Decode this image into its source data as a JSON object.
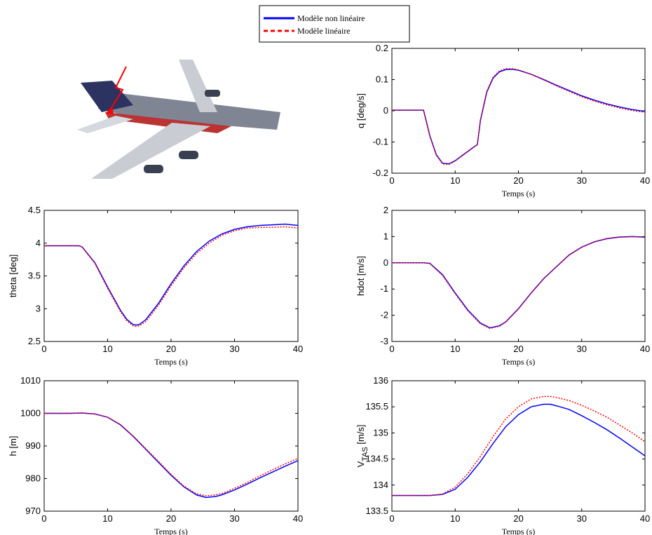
{
  "legend": [
    {
      "name": "Modèle non linéaire",
      "color": "#0000ff",
      "dash": "solid"
    },
    {
      "name": "Modèle linéaire",
      "color": "#ff0000",
      "dash": "dotted"
    }
  ],
  "chart_data": [
    {
      "type": "line",
      "ylabel": "q [deg/s]",
      "xlabel": "Temps (s)",
      "x": [
        0,
        5,
        6,
        7,
        8,
        9,
        10,
        11,
        12,
        13,
        13.5,
        14,
        15,
        16,
        17,
        18,
        19,
        20,
        22,
        24,
        26,
        28,
        30,
        32,
        34,
        36,
        38,
        40
      ],
      "series": [
        {
          "color": "#0000ff",
          "dash": "solid",
          "values": [
            0.002,
            0.002,
            -0.08,
            -0.14,
            -0.168,
            -0.17,
            -0.16,
            -0.145,
            -0.13,
            -0.115,
            -0.108,
            -0.03,
            0.06,
            0.105,
            0.125,
            0.132,
            0.133,
            0.13,
            0.117,
            0.1,
            0.082,
            0.065,
            0.048,
            0.034,
            0.022,
            0.012,
            0.004,
            -0.002
          ]
        },
        {
          "color": "#ff0000",
          "dash": "dotted",
          "values": [
            0.002,
            0.002,
            -0.082,
            -0.142,
            -0.17,
            -0.172,
            -0.161,
            -0.146,
            -0.131,
            -0.116,
            -0.109,
            -0.028,
            0.063,
            0.108,
            0.128,
            0.135,
            0.135,
            0.131,
            0.117,
            0.099,
            0.08,
            0.062,
            0.045,
            0.031,
            0.019,
            0.009,
            0.001,
            -0.005
          ]
        }
      ],
      "xlim": [
        0,
        40
      ],
      "xticks": [
        0,
        10,
        20,
        30,
        40
      ],
      "ylim": [
        -0.2,
        0.2
      ],
      "yticks": [
        -0.2,
        -0.1,
        0,
        0.1,
        0.2
      ]
    },
    {
      "type": "line",
      "ylabel": "theta [deg]",
      "xlabel": "Temps (s)",
      "x": [
        0,
        2,
        4,
        5.5,
        6,
        8,
        10,
        12,
        13,
        14,
        14.5,
        15,
        16,
        18,
        20,
        22,
        24,
        26,
        28,
        30,
        32,
        34,
        36,
        38,
        40
      ],
      "series": [
        {
          "color": "#0000ff",
          "dash": "solid",
          "values": [
            3.96,
            3.96,
            3.96,
            3.96,
            3.94,
            3.7,
            3.33,
            2.98,
            2.84,
            2.76,
            2.75,
            2.76,
            2.83,
            3.08,
            3.38,
            3.65,
            3.87,
            4.03,
            4.14,
            4.21,
            4.25,
            4.27,
            4.28,
            4.29,
            4.27
          ]
        },
        {
          "color": "#ff0000",
          "dash": "dotted",
          "values": [
            3.96,
            3.96,
            3.96,
            3.96,
            3.94,
            3.69,
            3.31,
            2.96,
            2.82,
            2.74,
            2.73,
            2.74,
            2.8,
            3.05,
            3.35,
            3.62,
            3.84,
            4.0,
            4.12,
            4.19,
            4.23,
            4.24,
            4.24,
            4.25,
            4.23
          ]
        }
      ],
      "xlim": [
        0,
        40
      ],
      "xticks": [
        0,
        10,
        20,
        30,
        40
      ],
      "ylim": [
        2.5,
        4.5
      ],
      "yticks": [
        2.5,
        3,
        3.5,
        4,
        4.5
      ]
    },
    {
      "type": "line",
      "ylabel": "hdot [m/s]",
      "xlabel": "Temps (s)",
      "x": [
        0,
        2,
        4,
        5,
        6,
        8,
        10,
        12,
        14,
        15.5,
        17,
        18,
        20,
        22,
        24,
        26,
        28,
        30,
        32,
        34,
        36,
        38,
        40
      ],
      "series": [
        {
          "color": "#0000ff",
          "dash": "solid",
          "values": [
            0,
            0,
            0,
            0,
            -0.02,
            -0.45,
            -1.15,
            -1.8,
            -2.3,
            -2.48,
            -2.4,
            -2.25,
            -1.75,
            -1.15,
            -0.6,
            -0.15,
            0.3,
            0.6,
            0.8,
            0.92,
            0.98,
            1.0,
            0.98
          ]
        },
        {
          "color": "#ff0000",
          "dash": "dotted",
          "values": [
            0,
            0,
            0,
            0,
            -0.03,
            -0.48,
            -1.18,
            -1.83,
            -2.33,
            -2.5,
            -2.42,
            -2.26,
            -1.76,
            -1.16,
            -0.61,
            -0.15,
            0.29,
            0.59,
            0.8,
            0.93,
            0.99,
            1.0,
            0.97
          ]
        }
      ],
      "xlim": [
        0,
        40
      ],
      "xticks": [
        0,
        10,
        20,
        30,
        40
      ],
      "ylim": [
        -3,
        2
      ],
      "yticks": [
        -3,
        -2,
        -1,
        0,
        1,
        2
      ]
    },
    {
      "type": "line",
      "ylabel": "h [m]",
      "xlabel": "Temps (s)",
      "x": [
        0,
        2,
        4,
        6,
        8,
        10,
        12,
        14,
        16,
        18,
        20,
        22,
        24,
        25.5,
        27,
        28,
        30,
        32,
        34,
        36,
        38,
        40
      ],
      "series": [
        {
          "color": "#0000ff",
          "dash": "solid",
          "values": [
            1000,
            1000,
            1000,
            1000.1,
            999.8,
            998.8,
            996.5,
            993,
            989,
            985,
            981,
            977.5,
            975,
            974.2,
            974.5,
            975,
            976.5,
            978.3,
            980.2,
            982,
            983.8,
            985.5
          ]
        },
        {
          "color": "#ff0000",
          "dash": "dotted",
          "values": [
            1000,
            1000,
            1000,
            1000.1,
            999.8,
            998.8,
            996.6,
            993.1,
            989.2,
            985.3,
            981.3,
            977.7,
            975.3,
            974.7,
            975,
            975.4,
            977,
            978.8,
            980.8,
            982.7,
            984.5,
            986.2
          ]
        }
      ],
      "xlim": [
        0,
        40
      ],
      "xticks": [
        0,
        10,
        20,
        30,
        40
      ],
      "ylim": [
        970,
        1010
      ],
      "yticks": [
        970,
        980,
        990,
        1000,
        1010
      ]
    },
    {
      "type": "line",
      "ylabel": [
        "V",
        "TAS",
        " [m/s]"
      ],
      "xlabel": "Temps (s)",
      "x": [
        0,
        2,
        4,
        6,
        8,
        10,
        12,
        14,
        16,
        18,
        20,
        22,
        24,
        25,
        26,
        28,
        30,
        32,
        34,
        36,
        38,
        40
      ],
      "series": [
        {
          "color": "#0000ff",
          "dash": "solid",
          "values": [
            133.8,
            133.8,
            133.8,
            133.8,
            133.82,
            133.92,
            134.15,
            134.45,
            134.8,
            135.12,
            135.35,
            135.5,
            135.55,
            135.55,
            135.52,
            135.45,
            135.33,
            135.2,
            135.06,
            134.9,
            134.73,
            134.56
          ]
        },
        {
          "color": "#ff0000",
          "dash": "dotted",
          "values": [
            133.8,
            133.8,
            133.8,
            133.8,
            133.83,
            133.96,
            134.22,
            134.55,
            134.93,
            135.27,
            135.5,
            135.65,
            135.7,
            135.7,
            135.68,
            135.62,
            135.53,
            135.42,
            135.3,
            135.15,
            135.0,
            134.83
          ]
        }
      ],
      "xlim": [
        0,
        40
      ],
      "xticks": [
        0,
        10,
        20,
        30,
        40
      ],
      "ylim": [
        133.5,
        136
      ],
      "yticks": [
        133.5,
        134,
        134.5,
        135,
        135.5,
        136
      ]
    }
  ]
}
